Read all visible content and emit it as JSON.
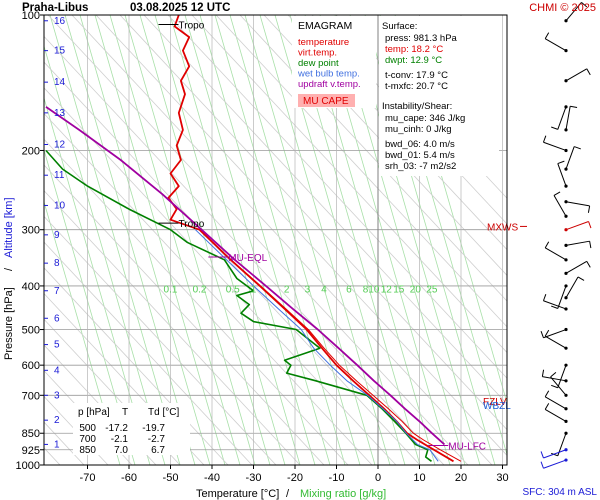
{
  "header": {
    "station": "Praha-Libus",
    "datetime": "03.08.2025 12 UTC",
    "credit": "CHMI © 2025"
  },
  "axes": {
    "ylabel_left": "Pressure [hPa]",
    "ylabel_sep": "/",
    "ylabel_right": "Altitude [km]",
    "xlabel_temp": "Temperature [°C]",
    "xlabel_sep": "/",
    "xlabel_mix": "Mixing ratio [g/kg]",
    "sfc": "SFC: 304 m ASL",
    "colors": {
      "axis": "#000000",
      "temp_label": "#000000",
      "mix_label": "#33bb33",
      "alt_label": "#1a1ad6"
    }
  },
  "legend": {
    "title": "EMAGRAM",
    "items": [
      {
        "label": "temperature",
        "color": "#e00000"
      },
      {
        "label": "virt.temp.",
        "color": "#e00000"
      },
      {
        "label": "dew point",
        "color": "#008000"
      },
      {
        "label": "wet bulb temp.",
        "color": "#4070e0"
      },
      {
        "label": "updraft v.temp.",
        "color": "#a000a0"
      }
    ],
    "cape_badge": "MU CAPE"
  },
  "surface": {
    "title": "Surface:",
    "press": "press: 981.3 hPa",
    "temp": "temp: 18.2 °C",
    "dwpt": "dwpt: 12.9 °C",
    "tconv": "t-conv: 17.9 °C",
    "tmxfc": "t-mxfc: 20.7 °C"
  },
  "instability": {
    "title": "Instability/Shear:",
    "mu_cape": "mu_cape: 346 J/kg",
    "mu_cinh": "mu_cinh: 0 J/kg",
    "bwd06": "bwd_06: 4.0 m/s",
    "bwd01": "bwd_01: 5.4 m/s",
    "srh03": "srh_03: -7 m2/s2"
  },
  "table": {
    "header": [
      "p [hPa]",
      "T",
      "Td [°C]"
    ],
    "rows": [
      [
        "500",
        "-17.2",
        "-19.7"
      ],
      [
        "700",
        "-2.1",
        "-2.7"
      ],
      [
        "850",
        "7.0",
        "6.7"
      ]
    ]
  },
  "chart_data": {
    "type": "line",
    "title": "Praha-Libus 03.08.2025 12 UTC",
    "xlabel": "Temperature [°C] / Mixing ratio [g/kg]",
    "ylabel": "Pressure [hPa] / Altitude [km]",
    "x_unit": "°C",
    "y_unit": "hPa",
    "y_scale": "log",
    "xlim": [
      -80,
      40
    ],
    "ylim": [
      1000,
      100
    ],
    "x_ticks": [
      -70,
      -60,
      -50,
      -40,
      -30,
      -20,
      -10,
      0,
      10,
      20,
      30
    ],
    "p_ticks": [
      100,
      200,
      300,
      400,
      500,
      600,
      700,
      850,
      925,
      1000
    ],
    "altitude_ticks_km": [
      1,
      2,
      3,
      4,
      5,
      6,
      7,
      8,
      9,
      10,
      11,
      12,
      13,
      14,
      15,
      16
    ],
    "altitude_km_pressure": [
      [
        1,
        900
      ],
      [
        2,
        795
      ],
      [
        3,
        700
      ],
      [
        4,
        616
      ],
      [
        5,
        540
      ],
      [
        6,
        472
      ],
      [
        7,
        410
      ],
      [
        8,
        356
      ],
      [
        9,
        308
      ],
      [
        10,
        265
      ],
      [
        11,
        227
      ],
      [
        12,
        194
      ],
      [
        13,
        165
      ],
      [
        14,
        141
      ],
      [
        15,
        120
      ],
      [
        16,
        103
      ]
    ],
    "mixing_ratio_labels": [
      "0.1",
      "0.2",
      "0.5",
      "1",
      "2",
      "3",
      "4",
      "6",
      "8",
      "10",
      "12",
      "15",
      "20",
      "25"
    ],
    "mixing_ratio_label_x": [
      -50,
      -43,
      -35,
      -30,
      -22,
      -17,
      -13,
      -7,
      -3,
      -1,
      2,
      5,
      9,
      13
    ],
    "mixing_ratio_label_p": 405,
    "series": [
      {
        "name": "temperature",
        "color": "#e00000",
        "points": [
          [
            18.2,
            981
          ],
          [
            13.5,
            925
          ],
          [
            9.5,
            880
          ],
          [
            7.0,
            850
          ],
          [
            4.5,
            800
          ],
          [
            1.5,
            750
          ],
          [
            -2.1,
            700
          ],
          [
            -6.0,
            650
          ],
          [
            -10.0,
            600
          ],
          [
            -13.5,
            550
          ],
          [
            -17.2,
            500
          ],
          [
            -22.5,
            450
          ],
          [
            -28.5,
            400
          ],
          [
            -35.5,
            350
          ],
          [
            -43.0,
            300
          ],
          [
            -50.0,
            285
          ],
          [
            -48.5,
            270
          ],
          [
            -50.5,
            255
          ],
          [
            -48.0,
            240
          ],
          [
            -50.0,
            225
          ],
          [
            -47.5,
            210
          ],
          [
            -48.5,
            195
          ],
          [
            -47.0,
            180
          ],
          [
            -48.0,
            165
          ],
          [
            -46.5,
            150
          ],
          [
            -47.5,
            140
          ],
          [
            -45.5,
            130
          ],
          [
            -47.0,
            120
          ],
          [
            -45.5,
            112
          ],
          [
            -49.0,
            106
          ],
          [
            -48.0,
            100
          ]
        ]
      },
      {
        "name": "virt.temp.",
        "color": "#e00000",
        "points": [
          [
            20.0,
            981
          ],
          [
            15.0,
            925
          ],
          [
            11.0,
            880
          ],
          [
            8.5,
            850
          ],
          [
            5.8,
            800
          ],
          [
            2.5,
            750
          ],
          [
            -1.2,
            700
          ],
          [
            -5.2,
            650
          ],
          [
            -9.3,
            600
          ],
          [
            -13.0,
            550
          ],
          [
            -16.8,
            500
          ],
          [
            -22.2,
            450
          ],
          [
            -28.3,
            400
          ],
          [
            -35.4,
            350
          ],
          [
            -43.0,
            300
          ]
        ]
      },
      {
        "name": "dew point",
        "color": "#008000",
        "points": [
          [
            12.9,
            981
          ],
          [
            11.5,
            960
          ],
          [
            12.0,
            925
          ],
          [
            9.0,
            900
          ],
          [
            6.7,
            850
          ],
          [
            4.0,
            800
          ],
          [
            1.0,
            750
          ],
          [
            -2.7,
            700
          ],
          [
            -15.0,
            650
          ],
          [
            -22.0,
            625
          ],
          [
            -21.0,
            600
          ],
          [
            -22.5,
            585
          ],
          [
            -14.0,
            550
          ],
          [
            -19.7,
            500
          ],
          [
            -30.0,
            480
          ],
          [
            -33.0,
            460
          ],
          [
            -31.0,
            440
          ],
          [
            -34.0,
            420
          ],
          [
            -30.0,
            410
          ],
          [
            -34.0,
            385
          ],
          [
            -37.0,
            350
          ],
          [
            -46.0,
            320
          ],
          [
            -50.0,
            300
          ],
          [
            -60.0,
            270
          ],
          [
            -70.0,
            240
          ],
          [
            -76.0,
            220
          ],
          [
            -80.0,
            200
          ]
        ]
      },
      {
        "name": "wet bulb temp.",
        "color": "#4070e0",
        "points": [
          [
            14.5,
            981
          ],
          [
            12.5,
            925
          ],
          [
            9.5,
            900
          ],
          [
            6.8,
            850
          ],
          [
            4.5,
            800
          ],
          [
            1.2,
            750
          ],
          [
            -2.5,
            700
          ],
          [
            -7.5,
            650
          ],
          [
            -11.5,
            600
          ],
          [
            -15.5,
            550
          ],
          [
            -18.5,
            500
          ],
          [
            -24.0,
            450
          ],
          [
            -30.0,
            400
          ],
          [
            -36.5,
            350
          ],
          [
            -44.0,
            300
          ]
        ]
      },
      {
        "name": "updraft v.temp.",
        "color": "#a000a0",
        "points": [
          [
            16.0,
            900
          ],
          [
            13.0,
            850
          ],
          [
            10.0,
            800
          ],
          [
            6.5,
            750
          ],
          [
            3.0,
            700
          ],
          [
            -1.0,
            650
          ],
          [
            -5.0,
            600
          ],
          [
            -9.5,
            550
          ],
          [
            -14.5,
            500
          ],
          [
            -20.5,
            450
          ],
          [
            -27.0,
            400
          ],
          [
            -34.5,
            350
          ],
          [
            -42.5,
            300
          ],
          [
            -52.0,
            250
          ],
          [
            -62.0,
            210
          ],
          [
            -72.0,
            180
          ],
          [
            -80.0,
            160
          ]
        ]
      }
    ],
    "levels": [
      {
        "label": "Tropo",
        "p": 105,
        "x": -50
      },
      {
        "label": "Tropo",
        "p": 290,
        "x": -50
      },
      {
        "label": "MU-EQL",
        "p": 345,
        "x": -38
      },
      {
        "label": "MXWS",
        "p": 295,
        "side": "right"
      },
      {
        "label": "FZLV",
        "p": 720,
        "side": "right"
      },
      {
        "label": "WBZL",
        "p": 735,
        "side": "right"
      },
      {
        "label": "MU-LFC",
        "p": 905,
        "x": 15
      }
    ],
    "wind_barbs": {
      "count": 27,
      "p_levels": [
        103,
        120,
        140,
        160,
        180,
        200,
        220,
        240,
        260,
        280,
        300,
        325,
        350,
        375,
        400,
        425,
        450,
        500,
        550,
        600,
        650,
        700,
        750,
        800,
        850,
        925,
        975
      ]
    },
    "grid": true
  }
}
